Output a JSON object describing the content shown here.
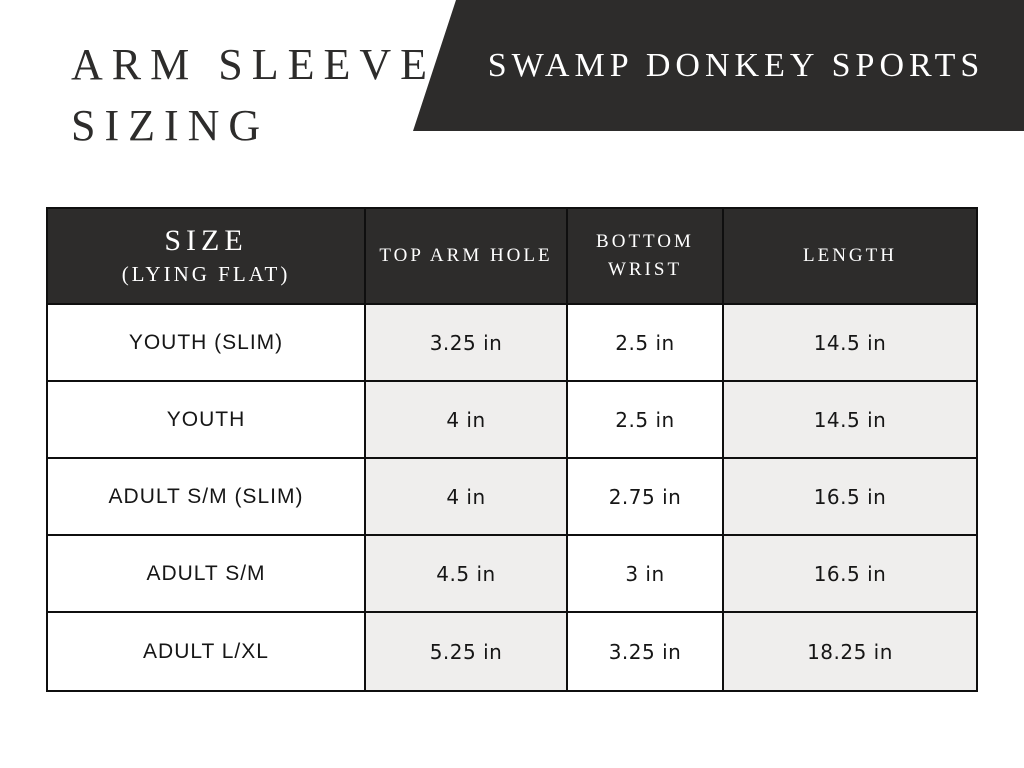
{
  "page": {
    "title": "ARM SLEEVE\nSIZING"
  },
  "banner": {
    "text": "SWAMP DONKEY SPORTS"
  },
  "colors": {
    "dark": "#2d2c2b",
    "shaded_cell": "#efeeed",
    "border": "#0f0f0f",
    "white": "#ffffff"
  },
  "table": {
    "headers": {
      "size_title": "SIZE",
      "size_subtitle": "(LYING FLAT)",
      "top_arm_hole": "TOP ARM HOLE",
      "bottom_wrist": "BOTTOM WRIST",
      "length": "LENGTH"
    },
    "rows": [
      {
        "size": "YOUTH (SLIM)",
        "top_arm_hole": "3.25 in",
        "bottom_wrist": "2.5 in",
        "length": "14.5 in"
      },
      {
        "size": "YOUTH",
        "top_arm_hole": "4 in",
        "bottom_wrist": "2.5 in",
        "length": "14.5 in"
      },
      {
        "size": "ADULT S/M (SLIM)",
        "top_arm_hole": "4 in",
        "bottom_wrist": "2.75 in",
        "length": "16.5 in"
      },
      {
        "size": "ADULT S/M",
        "top_arm_hole": "4.5 in",
        "bottom_wrist": "3 in",
        "length": "16.5 in"
      },
      {
        "size": "ADULT L/XL",
        "top_arm_hole": "5.25 in",
        "bottom_wrist": "3.25 in",
        "length": "18.25 in"
      }
    ]
  },
  "chart_data": {
    "type": "table",
    "title": "ARM SLEEVE SIZING",
    "brand": "SWAMP DONKEY SPORTS",
    "columns": [
      "SIZE (LYING FLAT)",
      "TOP ARM HOLE",
      "BOTTOM WRIST",
      "LENGTH"
    ],
    "rows": [
      [
        "YOUTH (SLIM)",
        "3.25 in",
        "2.5 in",
        "14.5 in"
      ],
      [
        "YOUTH",
        "4 in",
        "2.5 in",
        "14.5 in"
      ],
      [
        "ADULT S/M (SLIM)",
        "4 in",
        "2.75 in",
        "16.5 in"
      ],
      [
        "ADULT S/M",
        "4.5 in",
        "3 in",
        "16.5 in"
      ],
      [
        "ADULT L/XL",
        "5.25 in",
        "3.25 in",
        "18.25 in"
      ]
    ],
    "units": "inches",
    "layout": {
      "header_background": "#2d2c2b",
      "alternating_column_shading": true
    }
  }
}
